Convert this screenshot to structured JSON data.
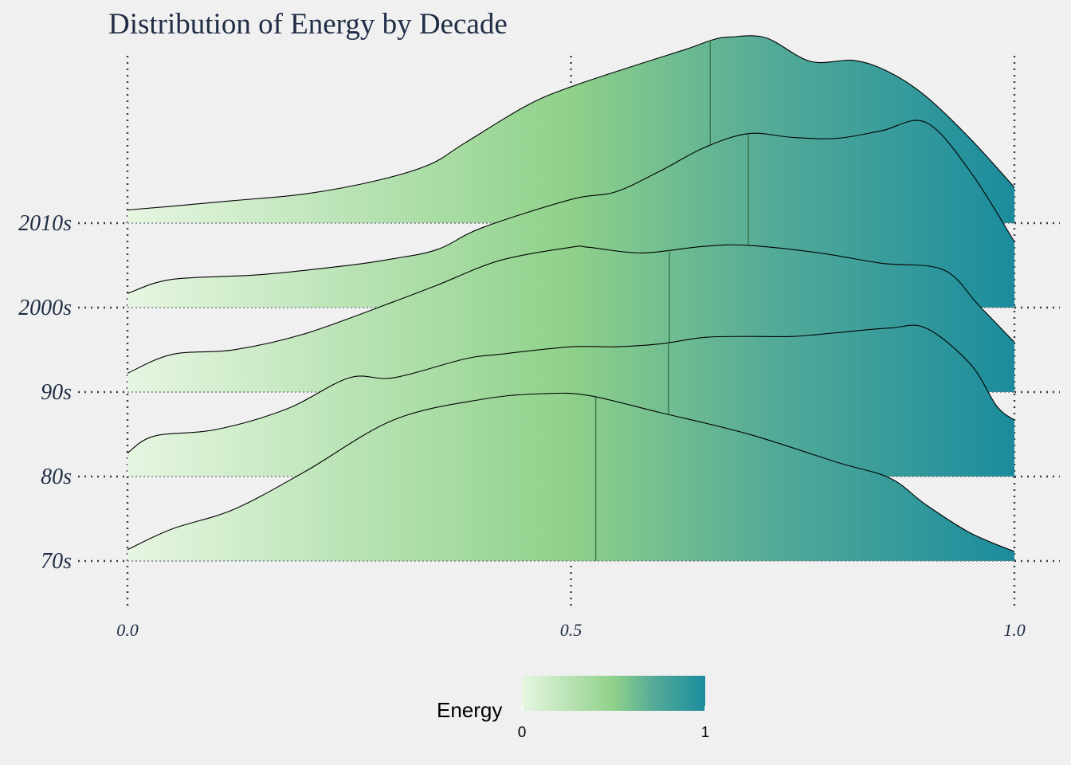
{
  "chart_data": {
    "type": "ridgeline",
    "title": "Distribution of Energy by Decade",
    "xlabel": "",
    "ylabel": "",
    "xlim": [
      0,
      1
    ],
    "x_ticks": [
      "0.0",
      "0.5",
      "1.0"
    ],
    "x_tick_values": [
      0,
      0.5,
      1
    ],
    "grid": true,
    "fill": {
      "type": "gradient",
      "variable": "Energy",
      "colors": [
        "#e6f6e1",
        "#8fd18a",
        "#55ab98",
        "#1b8c9d"
      ],
      "stops": [
        0,
        0.5,
        0.72,
        1
      ]
    },
    "legend": {
      "title": "Energy",
      "position": "bottom",
      "ticks": [
        "0",
        "1"
      ]
    },
    "series": [
      {
        "name": "70s",
        "median": 0.528,
        "x": [
          0,
          0.05,
          0.12,
          0.2,
          0.3,
          0.4,
          0.47,
          0.52,
          0.6,
          0.7,
          0.8,
          0.86,
          0.9,
          0.95,
          1.0
        ],
        "density": [
          0.12,
          0.34,
          0.55,
          0.95,
          1.5,
          1.72,
          1.78,
          1.76,
          1.58,
          1.35,
          1.05,
          0.88,
          0.6,
          0.3,
          0.1
        ]
      },
      {
        "name": "80s",
        "median": 0.61,
        "x": [
          0,
          0.03,
          0.1,
          0.18,
          0.25,
          0.3,
          0.38,
          0.42,
          0.5,
          0.55,
          0.6,
          0.65,
          0.7,
          0.75,
          0.8,
          0.86,
          0.9,
          0.95,
          0.98,
          1.0
        ],
        "density": [
          0.25,
          0.43,
          0.5,
          0.72,
          1.05,
          1.05,
          1.25,
          1.3,
          1.38,
          1.38,
          1.41,
          1.48,
          1.49,
          1.49,
          1.53,
          1.58,
          1.58,
          1.2,
          0.75,
          0.6
        ]
      },
      {
        "name": "90s",
        "median": 0.611,
        "x": [
          0,
          0.05,
          0.12,
          0.2,
          0.3,
          0.35,
          0.42,
          0.5,
          0.52,
          0.58,
          0.65,
          0.7,
          0.78,
          0.85,
          0.92,
          0.96,
          1.0
        ],
        "density": [
          0.2,
          0.4,
          0.45,
          0.62,
          0.96,
          1.14,
          1.4,
          1.54,
          1.54,
          1.48,
          1.55,
          1.56,
          1.48,
          1.37,
          1.3,
          0.92,
          0.53
        ]
      },
      {
        "name": "2000s",
        "median": 0.7,
        "x": [
          0,
          0.05,
          0.15,
          0.25,
          0.3,
          0.35,
          0.4,
          0.5,
          0.55,
          0.6,
          0.65,
          0.7,
          0.75,
          0.8,
          0.85,
          0.9,
          0.95,
          1.0
        ],
        "density": [
          0.15,
          0.3,
          0.35,
          0.45,
          0.52,
          0.62,
          0.85,
          1.15,
          1.23,
          1.45,
          1.7,
          1.85,
          1.81,
          1.8,
          1.88,
          1.97,
          1.45,
          0.7
        ]
      },
      {
        "name": "2010s",
        "median": 0.657,
        "x": [
          0,
          0.05,
          0.12,
          0.2,
          0.28,
          0.34,
          0.38,
          0.45,
          0.5,
          0.58,
          0.63,
          0.66,
          0.68,
          0.72,
          0.77,
          0.82,
          0.86,
          0.9,
          0.95,
          1.0
        ],
        "density": [
          0.14,
          0.18,
          0.24,
          0.31,
          0.45,
          0.62,
          0.85,
          1.25,
          1.45,
          1.7,
          1.85,
          1.95,
          1.98,
          1.97,
          1.72,
          1.73,
          1.6,
          1.35,
          0.9,
          0.38
        ]
      }
    ]
  }
}
